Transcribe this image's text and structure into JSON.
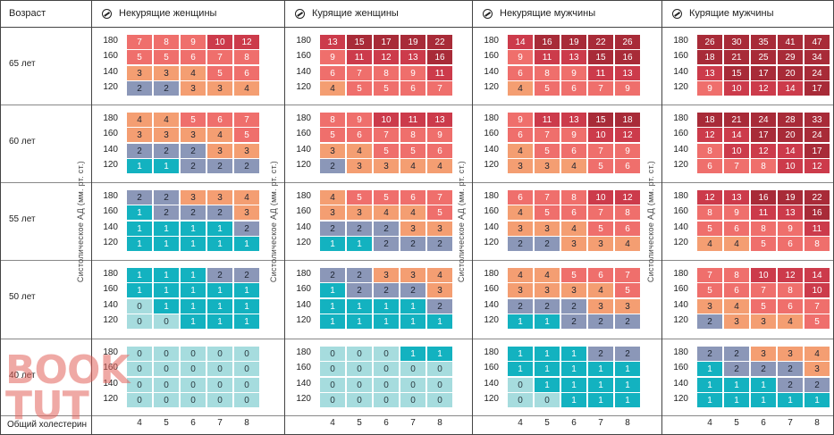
{
  "chart_data": {
    "type": "heatmap",
    "row_header": "Возраст",
    "y_axis_label": "Систолическое АД (мм. рт. ст.)",
    "x_axis_label": "Общий холестерин",
    "x_ticks": [
      "4",
      "5",
      "6",
      "7",
      "8"
    ],
    "sbp_levels": [
      "180",
      "160",
      "140",
      "120"
    ],
    "ages": [
      "65 лет",
      "60 лет",
      "55 лет",
      "50 лет",
      "40 лет"
    ],
    "groups": [
      {
        "title": "Некурящие женщины",
        "values": [
          [
            [
              7,
              8,
              9,
              10,
              12
            ],
            [
              5,
              5,
              6,
              7,
              8
            ],
            [
              3,
              3,
              4,
              5,
              6
            ],
            [
              2,
              2,
              3,
              3,
              4
            ]
          ],
          [
            [
              4,
              4,
              5,
              6,
              7
            ],
            [
              3,
              3,
              3,
              4,
              5
            ],
            [
              2,
              2,
              2,
              3,
              3
            ],
            [
              1,
              1,
              2,
              2,
              2
            ]
          ],
          [
            [
              2,
              2,
              3,
              3,
              4
            ],
            [
              1,
              2,
              2,
              2,
              3
            ],
            [
              1,
              1,
              1,
              1,
              2
            ],
            [
              1,
              1,
              1,
              1,
              1
            ]
          ],
          [
            [
              1,
              1,
              1,
              2,
              2
            ],
            [
              1,
              1,
              1,
              1,
              1
            ],
            [
              0,
              1,
              1,
              1,
              1
            ],
            [
              0,
              0,
              1,
              1,
              1
            ]
          ],
          [
            [
              0,
              0,
              0,
              0,
              0
            ],
            [
              0,
              0,
              0,
              0,
              0
            ],
            [
              0,
              0,
              0,
              0,
              0
            ],
            [
              0,
              0,
              0,
              0,
              0
            ]
          ]
        ]
      },
      {
        "title": "Курящие женщины",
        "values": [
          [
            [
              13,
              15,
              17,
              19,
              22
            ],
            [
              9,
              11,
              12,
              13,
              16
            ],
            [
              6,
              7,
              8,
              9,
              11
            ],
            [
              4,
              5,
              5,
              6,
              7
            ]
          ],
          [
            [
              8,
              9,
              10,
              11,
              13
            ],
            [
              5,
              6,
              7,
              8,
              9
            ],
            [
              3,
              4,
              5,
              5,
              6
            ],
            [
              2,
              3,
              3,
              4,
              4
            ]
          ],
          [
            [
              4,
              5,
              5,
              6,
              7
            ],
            [
              3,
              3,
              4,
              4,
              5
            ],
            [
              2,
              2,
              2,
              3,
              3
            ],
            [
              1,
              1,
              2,
              2,
              2
            ]
          ],
          [
            [
              2,
              2,
              3,
              3,
              4
            ],
            [
              1,
              2,
              2,
              2,
              3
            ],
            [
              1,
              1,
              1,
              1,
              2
            ],
            [
              1,
              1,
              1,
              1,
              1
            ]
          ],
          [
            [
              0,
              0,
              0,
              1,
              1
            ],
            [
              0,
              0,
              0,
              0,
              0
            ],
            [
              0,
              0,
              0,
              0,
              0
            ],
            [
              0,
              0,
              0,
              0,
              0
            ]
          ]
        ]
      },
      {
        "title": "Некурящие мужчины",
        "values": [
          [
            [
              14,
              16,
              19,
              22,
              26
            ],
            [
              9,
              11,
              13,
              15,
              16
            ],
            [
              6,
              8,
              9,
              11,
              13
            ],
            [
              4,
              5,
              6,
              7,
              9
            ]
          ],
          [
            [
              9,
              11,
              13,
              15,
              18
            ],
            [
              6,
              7,
              9,
              10,
              12
            ],
            [
              4,
              5,
              6,
              7,
              9
            ],
            [
              3,
              3,
              4,
              5,
              6
            ]
          ],
          [
            [
              6,
              7,
              8,
              10,
              12
            ],
            [
              4,
              5,
              6,
              7,
              8
            ],
            [
              3,
              3,
              4,
              5,
              6
            ],
            [
              2,
              2,
              3,
              3,
              4
            ]
          ],
          [
            [
              4,
              4,
              5,
              6,
              7
            ],
            [
              3,
              3,
              3,
              4,
              5
            ],
            [
              2,
              2,
              2,
              3,
              3
            ],
            [
              1,
              1,
              2,
              2,
              2
            ]
          ],
          [
            [
              1,
              1,
              1,
              2,
              2
            ],
            [
              1,
              1,
              1,
              1,
              1
            ],
            [
              0,
              1,
              1,
              1,
              1
            ],
            [
              0,
              0,
              1,
              1,
              1
            ]
          ]
        ]
      },
      {
        "title": "Курящие мужчины",
        "values": [
          [
            [
              26,
              30,
              35,
              41,
              47
            ],
            [
              18,
              21,
              25,
              29,
              34
            ],
            [
              13,
              15,
              17,
              20,
              24
            ],
            [
              9,
              10,
              12,
              14,
              17
            ]
          ],
          [
            [
              18,
              21,
              24,
              28,
              33
            ],
            [
              12,
              14,
              17,
              20,
              24
            ],
            [
              8,
              10,
              12,
              14,
              17
            ],
            [
              6,
              7,
              8,
              10,
              12
            ]
          ],
          [
            [
              12,
              13,
              16,
              19,
              22
            ],
            [
              8,
              9,
              11,
              13,
              16
            ],
            [
              5,
              6,
              8,
              9,
              11
            ],
            [
              4,
              4,
              5,
              6,
              8
            ]
          ],
          [
            [
              7,
              8,
              10,
              12,
              14
            ],
            [
              5,
              6,
              7,
              8,
              10
            ],
            [
              3,
              4,
              5,
              6,
              7
            ],
            [
              2,
              3,
              3,
              4,
              5
            ]
          ],
          [
            [
              2,
              2,
              3,
              3,
              4
            ],
            [
              1,
              2,
              2,
              2,
              3
            ],
            [
              1,
              1,
              1,
              2,
              2
            ],
            [
              1,
              1,
              1,
              1,
              1
            ]
          ]
        ]
      }
    ],
    "risk_colors": {
      "0": "#a6dcde",
      "1": "#13b2c0",
      "2": "#8b97b8",
      "3-4": "#f49e72",
      "5-9": "#ef6f6c",
      "10-14": "#cc3b4b",
      "15+": "#a82b38"
    },
    "watermark": "BOOK TUT"
  }
}
